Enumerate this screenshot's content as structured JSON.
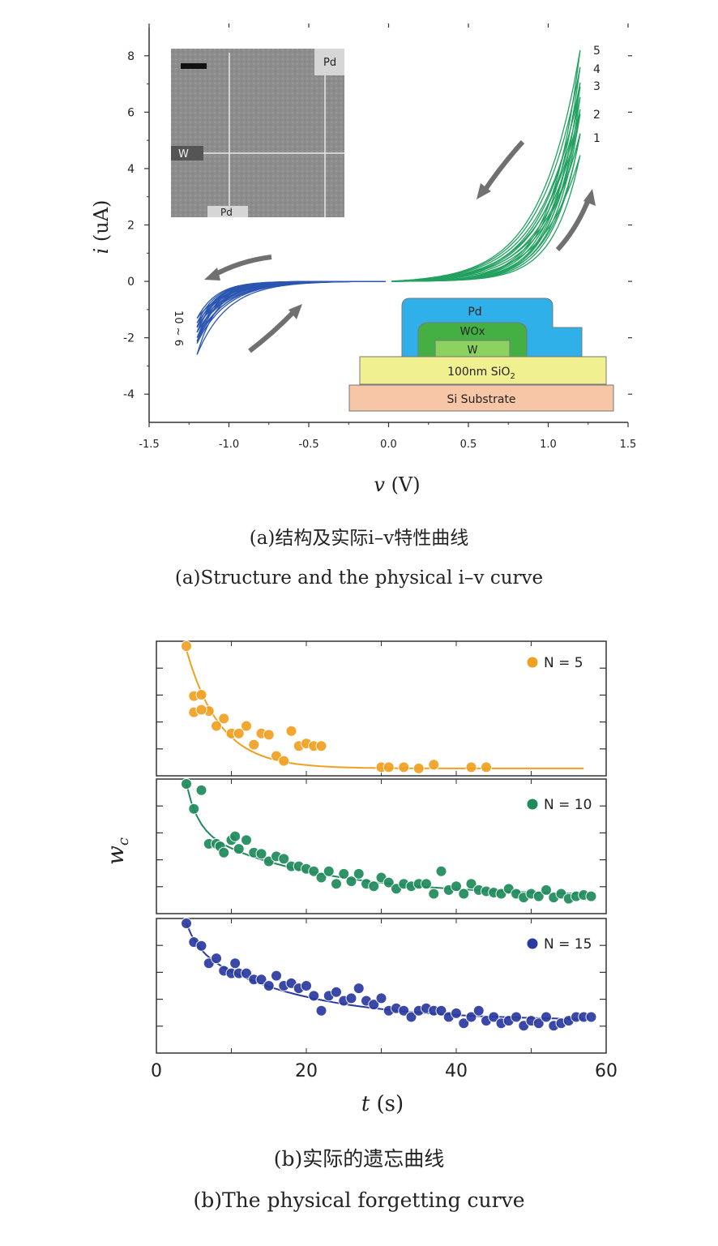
{
  "chart_data": [
    {
      "type": "line",
      "xlabel": "v (V)",
      "ylabel": "i (uA)",
      "xlim": [
        -1.5,
        1.5
      ],
      "ylim": [
        -5,
        9
      ],
      "x_ticks": [
        "-1.5",
        "-1.0",
        "-0.5",
        "0.0",
        "0.5",
        "1.0",
        "1.5"
      ],
      "y_ticks": [
        "-4",
        "-2",
        "0",
        "2",
        "4",
        "6",
        "8"
      ],
      "positive_sweep_peaks": [
        {
          "label": "1",
          "v": 1.2,
          "i": 5.2
        },
        {
          "label": "2",
          "v": 1.2,
          "i": 6.1
        },
        {
          "label": "3",
          "v": 1.2,
          "i": 6.9
        },
        {
          "label": "4",
          "v": 1.2,
          "i": 7.6
        },
        {
          "label": "5",
          "v": 1.2,
          "i": 8.2
        }
      ],
      "negative_sweep_minima": [
        {
          "v": -1.2,
          "i": -1.6
        },
        {
          "v": -1.2,
          "i": -1.8
        },
        {
          "v": -1.2,
          "i": -2.0
        },
        {
          "v": -1.2,
          "i": -2.2
        },
        {
          "v": -1.2,
          "i": -2.6
        }
      ],
      "negative_sweep_label": "10 ~ 6",
      "colors": {
        "positive": "#22a060",
        "negative": "#2a55b0"
      },
      "inset_sem_labels": [
        "Pd",
        "W",
        "Pd"
      ],
      "inset_structure_layers": [
        "Pd",
        "WOx",
        "W",
        "100nm SiO",
        "2",
        "Si Substrate"
      ]
    },
    {
      "type": "scatter",
      "xlabel": "t",
      "xunit": "(s)",
      "ylabel": "w",
      "ylabel_sub": "c",
      "xlim": [
        0,
        60
      ],
      "x_ticks": [
        "0",
        "20",
        "40",
        "60"
      ],
      "panels": [
        {
          "name": "N = 5",
          "color": "#f0a020",
          "points": [
            [
              4,
              1.0
            ],
            [
              5,
              0.6
            ],
            [
              6,
              0.61
            ],
            [
              5,
              0.47
            ],
            [
              7,
              0.48
            ],
            [
              6,
              0.49
            ],
            [
              8,
              0.36
            ],
            [
              9,
              0.42
            ],
            [
              10,
              0.3
            ],
            [
              11,
              0.3
            ],
            [
              12,
              0.36
            ],
            [
              13,
              0.21
            ],
            [
              14,
              0.3
            ],
            [
              15,
              0.29
            ],
            [
              16,
              0.12
            ],
            [
              17,
              0.08
            ],
            [
              18,
              0.32
            ],
            [
              19,
              0.2
            ],
            [
              20,
              0.22
            ],
            [
              21,
              0.2
            ],
            [
              22,
              0.2
            ],
            [
              30,
              0.03
            ],
            [
              31,
              0.03
            ],
            [
              33,
              0.03
            ],
            [
              35,
              0.02
            ],
            [
              37,
              0.05
            ],
            [
              42,
              0.03
            ],
            [
              44,
              0.03
            ]
          ],
          "fit_a": 0.95,
          "fit_tau": 4.5
        },
        {
          "name": "N = 10",
          "color": "#1f8a5c",
          "points": [
            [
              4,
              1.0
            ],
            [
              5,
              0.8
            ],
            [
              6,
              0.95
            ],
            [
              7,
              0.52
            ],
            [
              8,
              0.52
            ],
            [
              8.5,
              0.5
            ],
            [
              9,
              0.45
            ],
            [
              10,
              0.55
            ],
            [
              10.5,
              0.58
            ],
            [
              11,
              0.48
            ],
            [
              12,
              0.55
            ],
            [
              13,
              0.45
            ],
            [
              14,
              0.44
            ],
            [
              15,
              0.38
            ],
            [
              16,
              0.42
            ],
            [
              17,
              0.4
            ],
            [
              18,
              0.34
            ],
            [
              19,
              0.34
            ],
            [
              20,
              0.32
            ],
            [
              21,
              0.3
            ],
            [
              22,
              0.25
            ],
            [
              23,
              0.3
            ],
            [
              24,
              0.2
            ],
            [
              25,
              0.28
            ],
            [
              26,
              0.22
            ],
            [
              27,
              0.28
            ],
            [
              28,
              0.2
            ],
            [
              29,
              0.18
            ],
            [
              30,
              0.25
            ],
            [
              31,
              0.21
            ],
            [
              32,
              0.16
            ],
            [
              33,
              0.2
            ],
            [
              34,
              0.18
            ],
            [
              35,
              0.2
            ],
            [
              36,
              0.2
            ],
            [
              37,
              0.12
            ],
            [
              38,
              0.3
            ],
            [
              39,
              0.15
            ],
            [
              40,
              0.18
            ],
            [
              41,
              0.12
            ],
            [
              42,
              0.2
            ],
            [
              43,
              0.15
            ],
            [
              44,
              0.14
            ],
            [
              45,
              0.13
            ],
            [
              46,
              0.12
            ],
            [
              47,
              0.16
            ],
            [
              48,
              0.12
            ],
            [
              49,
              0.09
            ],
            [
              50,
              0.12
            ],
            [
              51,
              0.1
            ],
            [
              52,
              0.15
            ],
            [
              53,
              0.09
            ],
            [
              54,
              0.12
            ],
            [
              55,
              0.08
            ],
            [
              56,
              0.1
            ],
            [
              57,
              0.11
            ],
            [
              58,
              0.1
            ]
          ],
          "fit_a": 0.55,
          "fit_tau": 16,
          "fit_c": 0.1
        },
        {
          "name": "N = 15",
          "color": "#2a3aa0",
          "points": [
            [
              4,
              1.0
            ],
            [
              5,
              0.85
            ],
            [
              6,
              0.82
            ],
            [
              7,
              0.68
            ],
            [
              8,
              0.72
            ],
            [
              9,
              0.62
            ],
            [
              10,
              0.6
            ],
            [
              10.5,
              0.68
            ],
            [
              11,
              0.6
            ],
            [
              12,
              0.6
            ],
            [
              13,
              0.55
            ],
            [
              14,
              0.55
            ],
            [
              15,
              0.5
            ],
            [
              16,
              0.58
            ],
            [
              17,
              0.5
            ],
            [
              18,
              0.52
            ],
            [
              19,
              0.48
            ],
            [
              20,
              0.5
            ],
            [
              21,
              0.42
            ],
            [
              22,
              0.3
            ],
            [
              23,
              0.42
            ],
            [
              24,
              0.45
            ],
            [
              25,
              0.38
            ],
            [
              26,
              0.4
            ],
            [
              27,
              0.48
            ],
            [
              28,
              0.38
            ],
            [
              29,
              0.35
            ],
            [
              30,
              0.4
            ],
            [
              31,
              0.3
            ],
            [
              32,
              0.32
            ],
            [
              33,
              0.3
            ],
            [
              34,
              0.25
            ],
            [
              35,
              0.3
            ],
            [
              36,
              0.32
            ],
            [
              37,
              0.3
            ],
            [
              38,
              0.3
            ],
            [
              39,
              0.25
            ],
            [
              40,
              0.28
            ],
            [
              41,
              0.2
            ],
            [
              42,
              0.25
            ],
            [
              43,
              0.3
            ],
            [
              44,
              0.22
            ],
            [
              45,
              0.25
            ],
            [
              46,
              0.2
            ],
            [
              47,
              0.22
            ],
            [
              48,
              0.25
            ],
            [
              49,
              0.18
            ],
            [
              50,
              0.22
            ],
            [
              51,
              0.2
            ],
            [
              52,
              0.25
            ],
            [
              53,
              0.18
            ],
            [
              54,
              0.2
            ],
            [
              55,
              0.22
            ],
            [
              56,
              0.25
            ],
            [
              57,
              0.25
            ],
            [
              58,
              0.25
            ]
          ],
          "fit_a": 0.6,
          "fit_tau": 14,
          "fit_c": 0.22
        }
      ]
    }
  ],
  "captions": {
    "a_cn": "(a)结构及实际i–v特性曲线",
    "a_en": "(a)Structure and the physical i–v curve",
    "b_cn": "(b)实际的遗忘曲线",
    "b_en": "(b)The physical forgetting curve"
  }
}
